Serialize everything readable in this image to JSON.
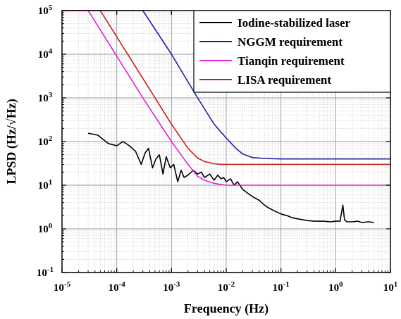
{
  "chart_data": {
    "type": "line",
    "xlabel": "Frequency (Hz)",
    "ylabel": "LPSD (Hz/√Hz)",
    "xscale": "log",
    "yscale": "log",
    "xlim": [
      1e-05,
      10
    ],
    "ylim": [
      0.1,
      100000
    ],
    "grid": true,
    "legend_position": "top-right",
    "x_ticks": [
      {
        "value": 1e-05,
        "base": "10",
        "exp": "-5"
      },
      {
        "value": 0.0001,
        "base": "10",
        "exp": "-4"
      },
      {
        "value": 0.001,
        "base": "10",
        "exp": "-3"
      },
      {
        "value": 0.01,
        "base": "10",
        "exp": "-2"
      },
      {
        "value": 0.1,
        "base": "10",
        "exp": "-1"
      },
      {
        "value": 1,
        "base": "10",
        "exp": "0"
      },
      {
        "value": 10,
        "base": "10",
        "exp": "1"
      }
    ],
    "y_ticks": [
      {
        "value": 0.1,
        "base": "10",
        "exp": "-1"
      },
      {
        "value": 1,
        "base": "10",
        "exp": "0"
      },
      {
        "value": 10,
        "base": "10",
        "exp": "1"
      },
      {
        "value": 100,
        "base": "10",
        "exp": "2"
      },
      {
        "value": 1000,
        "base": "10",
        "exp": "3"
      },
      {
        "value": 10000,
        "base": "10",
        "exp": "4"
      },
      {
        "value": 100000,
        "base": "10",
        "exp": "5"
      }
    ],
    "series": [
      {
        "name": "Iodine-stabilized laser",
        "color": "#000000",
        "x": [
          3e-05,
          4.5e-05,
          7e-05,
          0.0001,
          0.00013,
          0.00017,
          0.00022,
          0.00028,
          0.00033,
          0.00038,
          0.00045,
          0.00052,
          0.0006,
          0.0007,
          0.0008,
          0.00095,
          0.0011,
          0.0013,
          0.0015,
          0.0017,
          0.002,
          0.0025,
          0.003,
          0.0035,
          0.004,
          0.005,
          0.006,
          0.007,
          0.008,
          0.009,
          0.01,
          0.012,
          0.014,
          0.016,
          0.02,
          0.025,
          0.03,
          0.04,
          0.05,
          0.06,
          0.08,
          0.1,
          0.13,
          0.16,
          0.2,
          0.3,
          0.4,
          0.6,
          0.8,
          1.0,
          1.2,
          1.35,
          1.45,
          1.6,
          2.0,
          2.5,
          3.0,
          4.0,
          5.0
        ],
        "y": [
          155,
          140,
          90,
          80,
          100,
          80,
          60,
          30,
          55,
          70,
          25,
          40,
          50,
          18,
          45,
          25,
          30,
          12,
          22,
          15,
          17,
          22,
          18,
          20,
          15,
          18,
          13,
          17,
          14,
          15,
          12,
          14,
          10,
          12,
          8,
          6.5,
          5.5,
          4.5,
          3.5,
          3.0,
          2.5,
          2.2,
          2.0,
          1.8,
          1.7,
          1.55,
          1.5,
          1.5,
          1.45,
          1.5,
          1.5,
          3.5,
          1.6,
          1.45,
          1.45,
          1.5,
          1.4,
          1.45,
          1.4
        ]
      },
      {
        "name": "NGGM requirement",
        "color": "#1f1fa8",
        "x": [
          1e-05,
          0.0003,
          0.001,
          0.003,
          0.006,
          0.01,
          0.015,
          0.02,
          0.03,
          0.05,
          0.1,
          1,
          10
        ],
        "y": [
          100000,
          100000,
          10000,
          1000,
          250,
          120,
          70,
          52,
          43,
          41,
          40,
          40,
          40
        ]
      },
      {
        "name": "Tianqin requirement",
        "color": "#e020e0",
        "x": [
          1e-05,
          3e-05,
          0.0001,
          0.0003,
          0.001,
          0.002,
          0.003,
          0.004,
          0.006,
          0.01,
          0.1,
          1,
          10
        ],
        "y": [
          100000,
          100000,
          9000,
          1000,
          100,
          30,
          16,
          13,
          11,
          10,
          10,
          10,
          10
        ]
      },
      {
        "name": "LISA requirement",
        "color": "#c81e1e",
        "x": [
          1e-05,
          5e-05,
          0.0001,
          0.0003,
          0.001,
          0.002,
          0.003,
          0.004,
          0.006,
          0.008,
          0.01,
          0.1,
          1,
          10
        ],
        "y": [
          100000,
          100000,
          25000,
          2800,
          250,
          70,
          42,
          35,
          31,
          30,
          30,
          30,
          30,
          30
        ]
      }
    ]
  }
}
